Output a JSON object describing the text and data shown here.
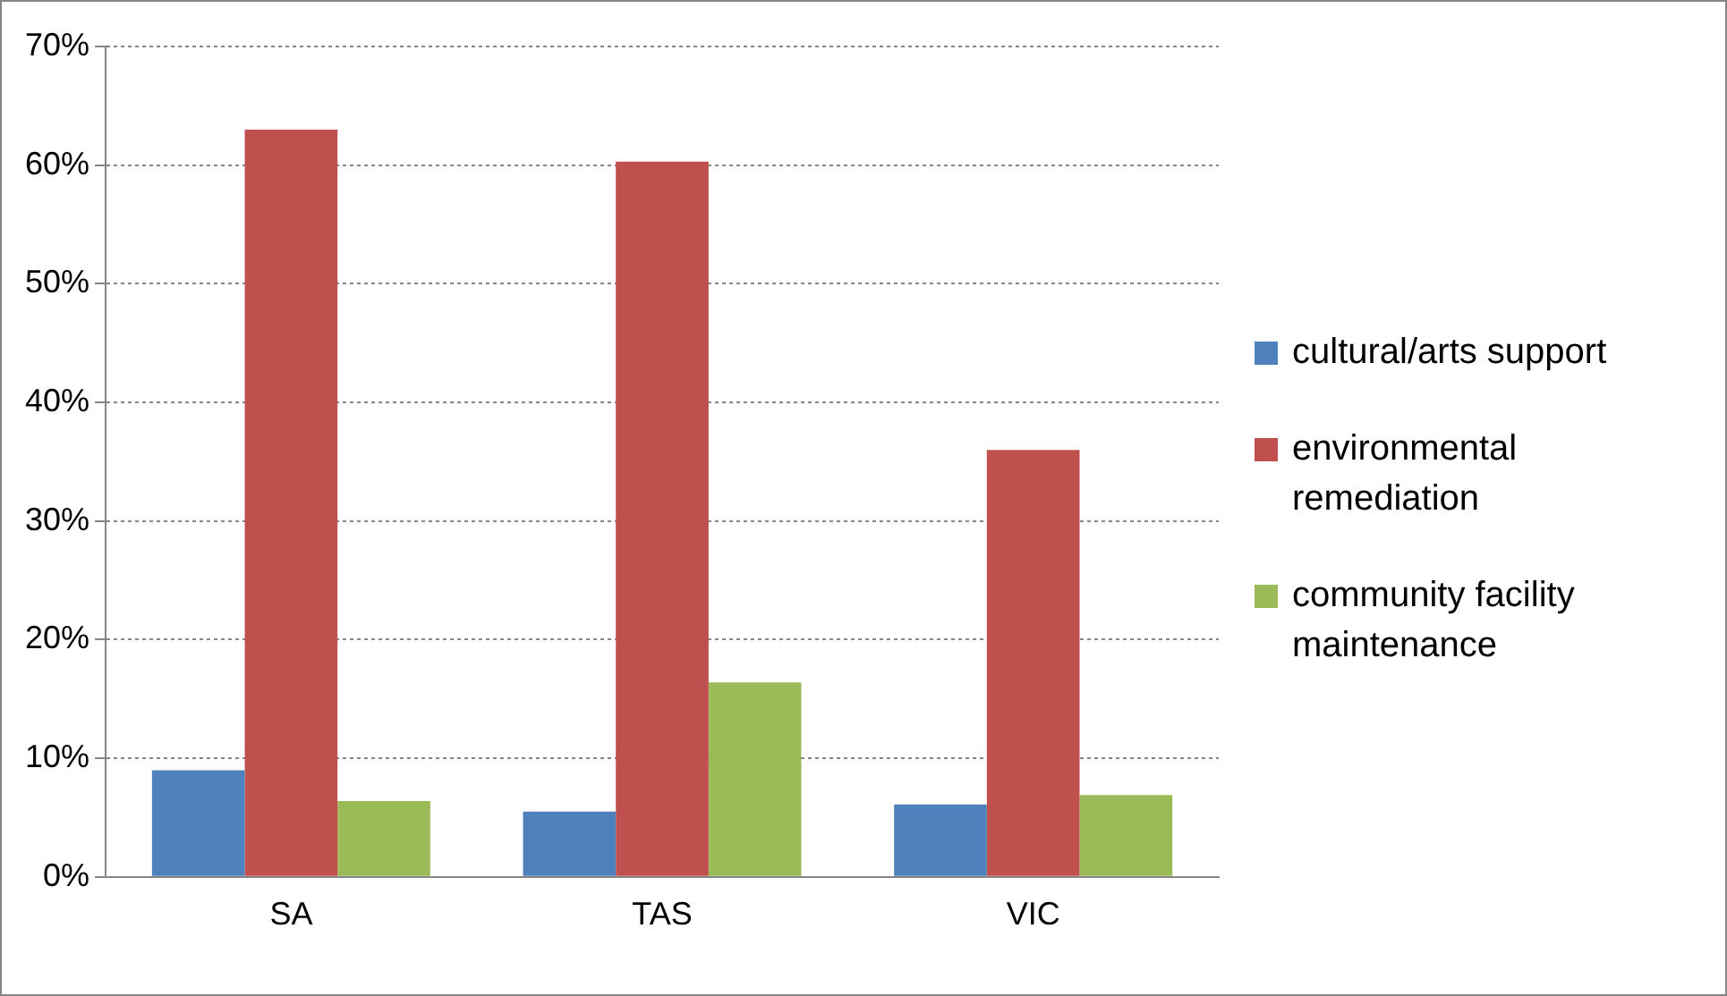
{
  "chart_data": {
    "type": "bar",
    "categories": [
      "SA",
      "TAS",
      "VIC"
    ],
    "series": [
      {
        "name": "cultural/arts support",
        "color": "#4f81bd",
        "values": [
          9,
          5.5,
          6.1
        ]
      },
      {
        "name": "environmental remediation",
        "color": "#c0504d",
        "values": [
          63,
          60.3,
          36
        ]
      },
      {
        "name": "community facility maintenance",
        "color": "#9bbb59",
        "values": [
          6.4,
          16.4,
          6.9
        ]
      }
    ],
    "ylim": [
      0,
      70
    ],
    "yticks": [
      {
        "value": 0,
        "label": "0%"
      },
      {
        "value": 10,
        "label": "10%"
      },
      {
        "value": 20,
        "label": "20%"
      },
      {
        "value": 30,
        "label": "30%"
      },
      {
        "value": 40,
        "label": "40%"
      },
      {
        "value": 50,
        "label": "50%"
      },
      {
        "value": 60,
        "label": "60%"
      },
      {
        "value": 70,
        "label": "70%"
      }
    ],
    "grid": "y",
    "legend": "right"
  }
}
